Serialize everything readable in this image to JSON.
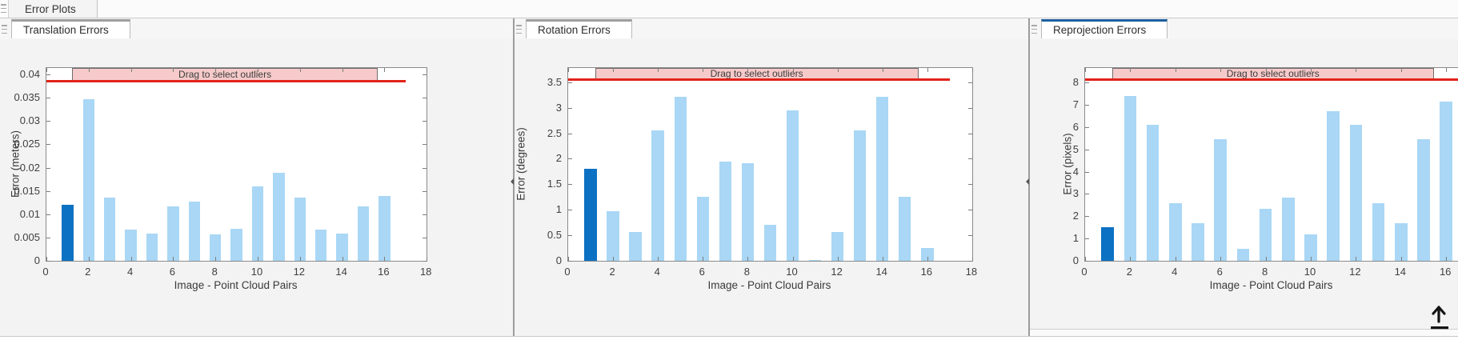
{
  "app": {
    "top_tab": "Error Plots"
  },
  "colors": {
    "bar_light": "#a9d7f5",
    "bar_dark": "#0c71c3",
    "threshold_red": "#e2231a",
    "banner_fill": "#f6caca",
    "tab_accent_active": "#1b5fa0",
    "tab_accent_inactive": "#9e9e9e"
  },
  "chart_data": [
    {
      "type": "bar",
      "panel_tab": "Translation Errors",
      "active_panel": false,
      "ylabel": "Error (meters)",
      "xlabel": "Image - Point Cloud Pairs",
      "x": [
        1,
        2,
        3,
        4,
        5,
        6,
        7,
        8,
        9,
        10,
        11,
        12,
        13,
        14,
        15,
        16
      ],
      "values": [
        0.012,
        0.0347,
        0.0135,
        0.0067,
        0.0058,
        0.0117,
        0.0127,
        0.0056,
        0.0068,
        0.016,
        0.0189,
        0.0135,
        0.0067,
        0.0058,
        0.0117,
        0.014
      ],
      "highlight_index": 0,
      "threshold": 0.0385,
      "threshold_x_end": 17,
      "banner": {
        "label": "Drag to select outliers",
        "x0": 1.2,
        "x1": 15.7
      },
      "xlim": [
        0,
        18
      ],
      "ylim": [
        0,
        0.0414
      ],
      "xticks": [
        0,
        2,
        4,
        6,
        8,
        10,
        12,
        14,
        16,
        18
      ],
      "yticks": [
        0,
        0.005,
        0.01,
        0.015,
        0.02,
        0.025,
        0.03,
        0.035,
        0.04
      ],
      "ytick_labels": [
        "0",
        "0.005",
        "0.01",
        "0.015",
        "0.02",
        "0.025",
        "0.03",
        "0.035",
        "0.04"
      ],
      "grid": false,
      "legend": null
    },
    {
      "type": "bar",
      "panel_tab": "Rotation Errors",
      "active_panel": false,
      "ylabel": "Error (degrees)",
      "xlabel": "Image - Point Cloud Pairs",
      "x": [
        1,
        2,
        3,
        4,
        5,
        6,
        7,
        8,
        9,
        10,
        11,
        12,
        13,
        14,
        15,
        16
      ],
      "values": [
        1.8,
        0.98,
        0.56,
        2.56,
        3.22,
        1.25,
        1.95,
        1.92,
        0.7,
        2.95,
        0.02,
        0.56,
        2.56,
        3.22,
        1.25,
        0.25
      ],
      "highlight_index": 0,
      "threshold": 3.55,
      "threshold_x_end": 17,
      "banner": {
        "label": "Drag to select outliers",
        "x0": 1.2,
        "x1": 15.6
      },
      "xlim": [
        0,
        18
      ],
      "ylim": [
        0,
        3.78
      ],
      "xticks": [
        0,
        2,
        4,
        6,
        8,
        10,
        12,
        14,
        16,
        18
      ],
      "yticks": [
        0,
        0.5,
        1,
        1.5,
        2,
        2.5,
        3,
        3.5
      ],
      "ytick_labels": [
        "0",
        "0.5",
        "1",
        "1.5",
        "2",
        "2.5",
        "3",
        "3.5"
      ],
      "grid": false,
      "legend": null
    },
    {
      "type": "bar",
      "panel_tab": "Reprojection Errors",
      "active_panel": true,
      "ylabel": "Error (pixels)",
      "xlabel": "Image - Point Cloud Pairs",
      "x": [
        1,
        2,
        3,
        4,
        5,
        6,
        7,
        8,
        9,
        10,
        11,
        12,
        13,
        14,
        15,
        16
      ],
      "values": [
        1.5,
        7.4,
        6.1,
        2.6,
        1.7,
        5.45,
        0.55,
        2.35,
        2.85,
        1.2,
        6.7,
        6.1,
        2.6,
        1.7,
        5.45,
        7.15
      ],
      "highlight_index": 0,
      "threshold": 8.12,
      "threshold_x_end": 17,
      "banner": {
        "label": "Drag to select outliers",
        "x0": 1.2,
        "x1": 15.45
      },
      "xlim": [
        0,
        18
      ],
      "clipped_right": true,
      "ylim": [
        0,
        8.65
      ],
      "xticks": [
        0,
        2,
        4,
        6,
        8,
        10,
        12,
        14,
        16
      ],
      "yticks": [
        0,
        1,
        2,
        3,
        4,
        5,
        6,
        7,
        8
      ],
      "ytick_labels": [
        "0",
        "1",
        "2",
        "3",
        "4",
        "5",
        "6",
        "7",
        "8"
      ],
      "grid": false,
      "legend": null
    }
  ]
}
